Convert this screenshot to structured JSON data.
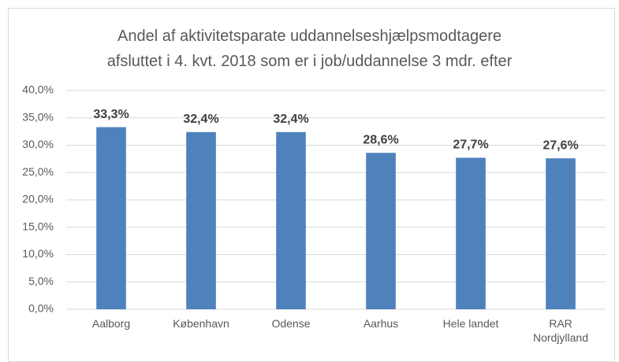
{
  "chart_data": {
    "type": "bar",
    "title": "Andel af aktivitetsparate uddannelseshjælpsmodtagere\nafsluttet i 4. kvt. 2018 som er i job/uddannelse 3 mdr. efter",
    "categories": [
      "Aalborg",
      "København",
      "Odense",
      "Aarhus",
      "Hele landet",
      "RAR\nNordjylland"
    ],
    "values": [
      33.3,
      32.4,
      32.4,
      28.6,
      27.7,
      27.6
    ],
    "value_labels": [
      "33,3%",
      "32,4%",
      "32,4%",
      "28,6%",
      "27,7%",
      "27,6%"
    ],
    "color": "#4f81bd",
    "ylim": [
      0,
      40
    ],
    "yticks": [
      {
        "value": 0,
        "label": "0,0%"
      },
      {
        "value": 5,
        "label": "5,0%"
      },
      {
        "value": 10,
        "label": "10,0%"
      },
      {
        "value": 15,
        "label": "15,0%"
      },
      {
        "value": 20,
        "label": "20,0%"
      },
      {
        "value": 25,
        "label": "25,0%"
      },
      {
        "value": 30,
        "label": "30,0%"
      },
      {
        "value": 35,
        "label": "35,0%"
      },
      {
        "value": 40,
        "label": "40,0%"
      }
    ],
    "grid": true
  }
}
